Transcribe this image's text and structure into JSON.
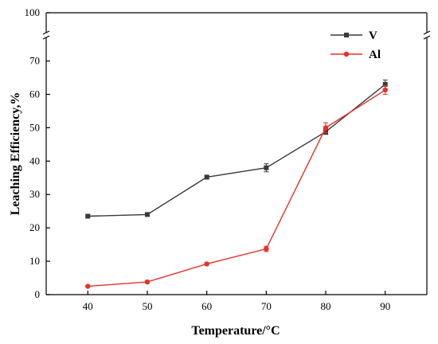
{
  "chart_data": {
    "type": "line",
    "xlabel": "Temperature/°C",
    "ylabel": "Leaching Efficiency,%",
    "x": [
      40,
      50,
      60,
      70,
      80,
      90
    ],
    "xlim": [
      33,
      97
    ],
    "xticks": [
      40,
      50,
      60,
      70,
      80,
      90
    ],
    "ylim": [
      0,
      73
    ],
    "yticks": [
      0,
      10,
      20,
      30,
      40,
      50,
      60,
      70
    ],
    "y_break": {
      "top_label": 100
    },
    "grid": false,
    "legend": "top-right",
    "series": [
      {
        "name": "V",
        "color": "#3a3a3a",
        "marker": "square",
        "values": [
          23.5,
          24.0,
          35.2,
          38.0,
          48.8,
          63.0
        ],
        "errors": [
          0.5,
          0.5,
          0.6,
          1.2,
          0.8,
          1.3
        ]
      },
      {
        "name": "Al",
        "color": "#e8302a",
        "marker": "circle",
        "values": [
          2.5,
          3.8,
          9.2,
          13.7,
          50.0,
          61.3
        ],
        "errors": [
          0.2,
          0.3,
          0.4,
          0.8,
          1.5,
          1.3
        ]
      }
    ]
  }
}
